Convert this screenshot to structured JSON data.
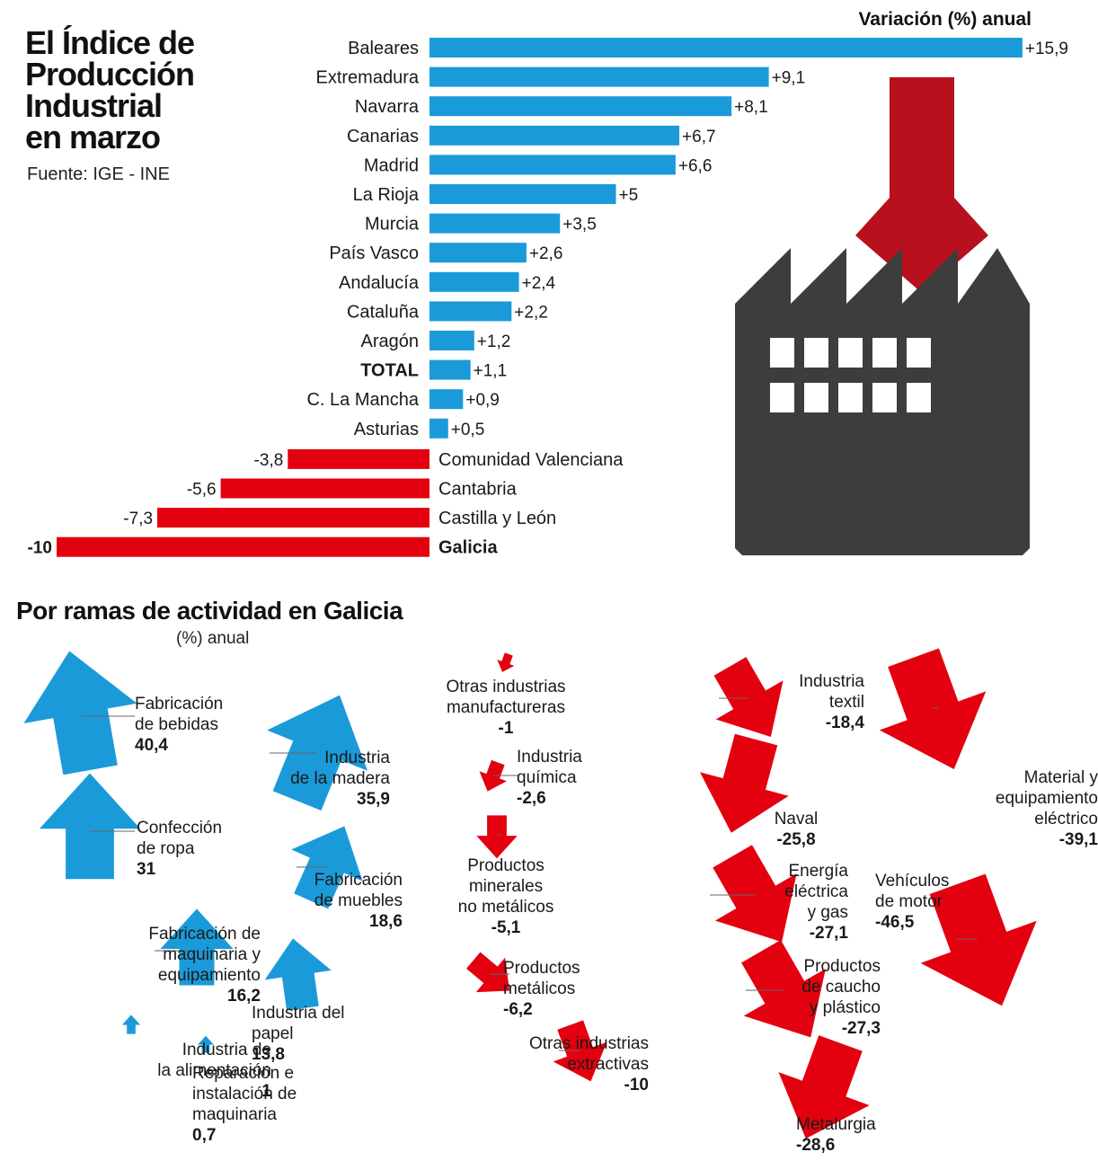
{
  "header": {
    "title_lines": [
      "El Índice de",
      "Producción",
      "Industrial",
      "en marzo"
    ],
    "source": "Fuente: IGE - INE",
    "variation_label": "Variación (%) anual"
  },
  "section2": {
    "title": "Por ramas de actividad en Galicia",
    "subtitle": "(%) anual"
  },
  "colors": {
    "positive": "#1b9ad9",
    "negative": "#e3000f",
    "factory": "#3d3d3d",
    "chimney": "#b8101c"
  },
  "chart_data": [
    {
      "type": "bar",
      "orientation": "horizontal",
      "title": "El Índice de Producción Industrial en marzo",
      "xlabel": "Variación (%) anual",
      "xlim": [
        -10,
        15.9
      ],
      "categories": [
        "Baleares",
        "Extremadura",
        "Navarra",
        "Canarias",
        "Madrid",
        "La Rioja",
        "Murcia",
        "País Vasco",
        "Andalucía",
        "Cataluña",
        "Aragón",
        "TOTAL",
        "C. La Mancha",
        "Asturias",
        "Comunidad Valenciana",
        "Cantabria",
        "Castilla y León",
        "Galicia"
      ],
      "values": [
        15.9,
        9.1,
        8.1,
        6.7,
        6.6,
        5,
        3.5,
        2.6,
        2.4,
        2.2,
        1.2,
        1.1,
        0.9,
        0.5,
        -3.8,
        -5.6,
        -7.3,
        -10
      ],
      "value_labels": [
        "+15,9",
        "+9,1",
        "+8,1",
        "+6,7",
        "+6,6",
        "+5",
        "+3,5",
        "+2,6",
        "+2,4",
        "+2,2",
        "+1,2",
        "+1,1",
        "+0,9",
        "+0,5",
        "-3,8",
        "-5,6",
        "-7,3",
        "-10"
      ],
      "bold_categories": [
        "TOTAL",
        "Galicia"
      ]
    },
    {
      "type": "arrows",
      "title": "Por ramas de actividad en Galicia",
      "unit": "(%) anual",
      "items": [
        {
          "name": "Fabricación de bebidas",
          "lines": [
            "Fabricación",
            "de bebidas"
          ],
          "label": "40,4",
          "value": 40.4
        },
        {
          "name": "Industria de la madera",
          "lines": [
            "Industria",
            "de la madera"
          ],
          "label": "35,9",
          "value": 35.9
        },
        {
          "name": "Confección de ropa",
          "lines": [
            "Confección",
            "de ropa"
          ],
          "label": "31",
          "value": 31
        },
        {
          "name": "Fabricación de muebles",
          "lines": [
            "Fabricación",
            "de muebles"
          ],
          "label": "18,6",
          "value": 18.6
        },
        {
          "name": "Fabricación de maquinaria y equipamiento",
          "lines": [
            "Fabricación de",
            "maquinaria y",
            "equipamiento"
          ],
          "label": "16,2",
          "value": 16.2
        },
        {
          "name": "Industria del papel",
          "lines": [
            "Industria del",
            "papel"
          ],
          "label": "13,8",
          "value": 13.8
        },
        {
          "name": "Industria de la alimentación",
          "lines": [
            "Industria de",
            "la alimentación"
          ],
          "label": "1",
          "value": 1
        },
        {
          "name": "Reparación e instalación de maquinaria",
          "lines": [
            "Reparación e",
            "instalación de",
            "maquinaria"
          ],
          "label": "0,7",
          "value": 0.7
        },
        {
          "name": "Otras industrias manufactureras",
          "lines": [
            "Otras industrias",
            "manufactureras"
          ],
          "label": "-1",
          "value": -1
        },
        {
          "name": "Industria química",
          "lines": [
            "Industria",
            "química"
          ],
          "label": "-2,6",
          "value": -2.6
        },
        {
          "name": "Productos minerales no metálicos",
          "lines": [
            "Productos",
            "minerales",
            "no metálicos"
          ],
          "label": "-5,1",
          "value": -5.1
        },
        {
          "name": "Productos metálicos",
          "lines": [
            "Productos",
            "metálicos"
          ],
          "label": "-6,2",
          "value": -6.2
        },
        {
          "name": "Otras industrias extractivas",
          "lines": [
            "Otras industrias",
            "extractivas"
          ],
          "label": "-10",
          "value": -10
        },
        {
          "name": "Industria textil",
          "lines": [
            "Industria",
            "textil"
          ],
          "label": "-18,4",
          "value": -18.4
        },
        {
          "name": "Naval",
          "lines": [
            "Naval"
          ],
          "label": "-25,8",
          "value": -25.8
        },
        {
          "name": "Energía eléctrica y gas",
          "lines": [
            "Energía",
            "eléctrica",
            "y gas"
          ],
          "label": "-27,1",
          "value": -27.1
        },
        {
          "name": "Productos de caucho y plástico",
          "lines": [
            "Productos",
            "de caucho",
            "y plástico"
          ],
          "label": "-27,3",
          "value": -27.3
        },
        {
          "name": "Metalurgia",
          "lines": [
            "Metalurgia"
          ],
          "label": "-28,6",
          "value": -28.6
        },
        {
          "name": "Material y equipamiento eléctrico",
          "lines": [
            "Material y",
            "equipamiento",
            "eléctrico"
          ],
          "label": "-39,1",
          "value": -39.1
        },
        {
          "name": "Vehículos de motor",
          "lines": [
            "Vehículos",
            "de motor"
          ],
          "label": "-46,5",
          "value": -46.5
        }
      ]
    }
  ]
}
